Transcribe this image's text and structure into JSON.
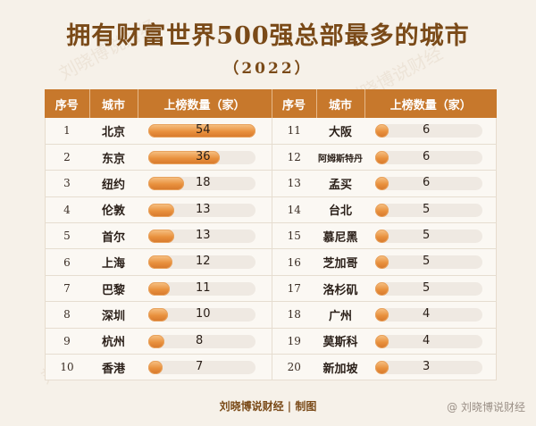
{
  "title": "拥有财富世界500强总部最多的城市",
  "year": "（2022）",
  "columns": {
    "rank": "序号",
    "city": "城市",
    "count": "上榜数量（家）"
  },
  "footer": "刘晓博说财经 | 制图",
  "mark": "@ 刘晓博说财经",
  "watermark": "刘晓博说财经",
  "chart_data": {
    "type": "table",
    "max_value": 54,
    "left": [
      {
        "rank": "1",
        "city": "北京",
        "value": 54
      },
      {
        "rank": "2",
        "city": "东京",
        "value": 36
      },
      {
        "rank": "3",
        "city": "纽约",
        "value": 18
      },
      {
        "rank": "4",
        "city": "伦敦",
        "value": 13
      },
      {
        "rank": "5",
        "city": "首尔",
        "value": 13
      },
      {
        "rank": "6",
        "city": "上海",
        "value": 12
      },
      {
        "rank": "7",
        "city": "巴黎",
        "value": 11
      },
      {
        "rank": "8",
        "city": "深圳",
        "value": 10
      },
      {
        "rank": "9",
        "city": "杭州",
        "value": 8
      },
      {
        "rank": "10",
        "city": "香港",
        "value": 7
      }
    ],
    "right": [
      {
        "rank": "11",
        "city": "大阪",
        "value": 6
      },
      {
        "rank": "12",
        "city": "阿姆斯特丹",
        "value": 6
      },
      {
        "rank": "13",
        "city": "孟买",
        "value": 6
      },
      {
        "rank": "14",
        "city": "台北",
        "value": 5
      },
      {
        "rank": "15",
        "city": "慕尼黑",
        "value": 5
      },
      {
        "rank": "16",
        "city": "芝加哥",
        "value": 5
      },
      {
        "rank": "17",
        "city": "洛杉矶",
        "value": 5
      },
      {
        "rank": "18",
        "city": "广州",
        "value": 4
      },
      {
        "rank": "19",
        "city": "莫斯科",
        "value": 4
      },
      {
        "rank": "20",
        "city": "新加坡",
        "value": 3
      }
    ]
  }
}
